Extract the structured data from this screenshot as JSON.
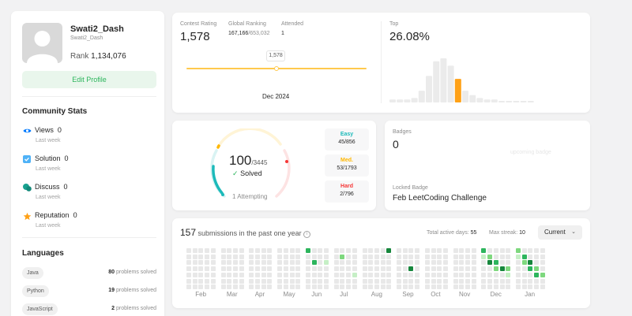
{
  "profile": {
    "username": "Swati2_Dash",
    "handle": "Swati2_Dash",
    "rank_label": "Rank",
    "rank_value": "1,134,076",
    "edit_label": "Edit Profile"
  },
  "community": {
    "title": "Community Stats",
    "items": [
      {
        "label": "Views",
        "value": "0",
        "sub": "Last week",
        "icon": "eye-icon",
        "color": "#007aff"
      },
      {
        "label": "Solution",
        "value": "0",
        "sub": "Last week",
        "icon": "checkbox-icon",
        "color": "#4fb2f7"
      },
      {
        "label": "Discuss",
        "value": "0",
        "sub": "Last week",
        "icon": "chat-icon",
        "color": "#18a18f"
      },
      {
        "label": "Reputation",
        "value": "0",
        "sub": "Last week",
        "icon": "star-icon",
        "color": "#ffa116"
      }
    ]
  },
  "languages": {
    "title": "Languages",
    "items": [
      {
        "name": "Java",
        "count": "80",
        "suffix": "problems solved"
      },
      {
        "name": "Python",
        "count": "19",
        "suffix": "problems solved"
      },
      {
        "name": "JavaScript",
        "count": "2",
        "suffix": "problems solved"
      }
    ]
  },
  "contest": {
    "rating_label": "Contest Rating",
    "rating_value": "1,578",
    "global_label": "Global Ranking",
    "global_value": "167,166",
    "global_total": "/653,032",
    "attended_label": "Attended",
    "attended_value": "1",
    "tooltip": "1,578",
    "date": "Dec 2024",
    "top_label": "Top",
    "top_value": "26.08%",
    "histogram": [
      2,
      2,
      2,
      3,
      8,
      18,
      28,
      30,
      25,
      16,
      8,
      5,
      3,
      2,
      2,
      1,
      1,
      1,
      1,
      1
    ],
    "highlight_index": 9,
    "bar_color": "#ebebeb",
    "highlight_color": "#ffa116"
  },
  "solved": {
    "count": "100",
    "total": "/3445",
    "solved_label": "Solved",
    "attempting": "1 Attempting",
    "easy_label": "Easy",
    "easy_value": "45/856",
    "medium_label": "Med.",
    "medium_value": "53/1793",
    "hard_label": "Hard",
    "hard_value": "2/796",
    "easy_fraction": 0.45,
    "medium_fraction": 0.53,
    "hard_fraction": 0.02,
    "easy_color": "#1cbaba",
    "medium_color": "#ffb700",
    "hard_color": "#f63737"
  },
  "badges": {
    "label": "Badges",
    "count": "0",
    "image_alt": "upcoming badge",
    "locked_label": "Locked Badge",
    "locked_name": "Feb LeetCoding Challenge"
  },
  "submissions": {
    "count": "157",
    "text": "submissions in the past one year",
    "active_label": "Total active days:",
    "active_value": "55",
    "streak_label": "Max streak:",
    "streak_value": "10",
    "dropdown": "Current",
    "months": [
      "Feb",
      "Mar",
      "Apr",
      "May",
      "Jun",
      "Jul",
      "Aug",
      "Sep",
      "Oct",
      "Nov",
      "Dec",
      "Jan"
    ],
    "month_weeks": [
      5,
      4,
      4,
      4,
      4,
      4,
      5,
      4,
      4,
      4,
      5,
      5
    ],
    "colors": [
      "#e8e8e8",
      "#c6efc6",
      "#7ed87e",
      "#2db55d",
      "#16863c"
    ],
    "activity": [
      [
        4,
        0,
        0,
        3
      ],
      [
        4,
        1,
        2,
        3
      ],
      [
        4,
        3,
        2,
        1
      ],
      [
        4,
        4,
        3,
        4
      ],
      [
        5,
        1,
        1,
        2
      ],
      [
        5,
        3,
        4,
        1
      ],
      [
        5,
        6,
        2,
        3
      ],
      [
        6,
        4,
        0,
        4
      ],
      [
        7,
        2,
        3,
        4
      ],
      [
        10,
        0,
        0,
        3
      ],
      [
        10,
        0,
        1,
        1
      ],
      [
        10,
        1,
        1,
        2
      ],
      [
        10,
        1,
        2,
        4
      ],
      [
        10,
        2,
        2,
        3
      ],
      [
        10,
        2,
        3,
        2
      ],
      [
        10,
        3,
        3,
        4
      ],
      [
        10,
        4,
        3,
        2
      ],
      [
        10,
        4,
        4,
        1
      ],
      [
        10,
        5,
        4,
        3
      ],
      [
        10,
        6,
        4,
        2
      ],
      [
        10,
        5,
        3,
        1
      ],
      [
        11,
        0,
        0,
        2
      ],
      [
        11,
        0,
        1,
        1
      ],
      [
        11,
        1,
        1,
        3
      ],
      [
        11,
        1,
        2,
        2
      ],
      [
        11,
        2,
        2,
        4
      ],
      [
        11,
        2,
        3,
        3
      ],
      [
        11,
        3,
        3,
        2
      ],
      [
        11,
        3,
        4,
        3
      ],
      [
        11,
        4,
        4,
        2
      ],
      [
        11,
        5,
        2,
        1
      ],
      [
        11,
        6,
        1,
        3
      ],
      [
        11,
        6,
        3,
        4
      ]
    ]
  }
}
